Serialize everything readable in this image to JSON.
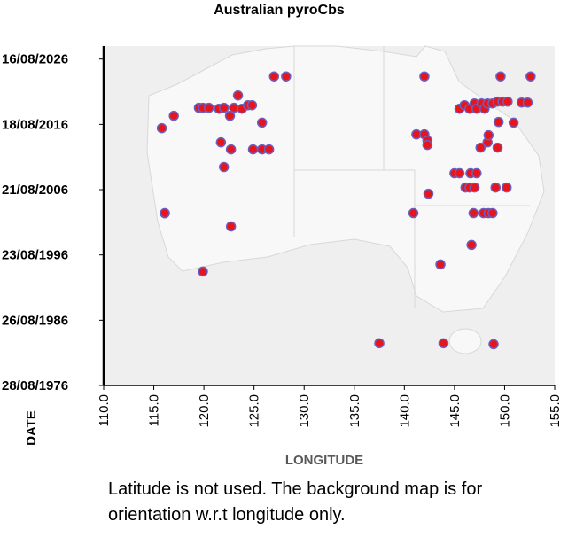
{
  "chart_data": {
    "type": "scatter",
    "title": "Australian pyroCbs",
    "x_label": "LONGITUDE",
    "y_label": "DATE",
    "note": "Latitude is not used. The background map is for orientation w.r.t longitude only.",
    "color": "#e8141c",
    "edge_color": "#6b5fc0",
    "xlim": [
      110,
      155
    ],
    "xticks": [
      {
        "value": 110,
        "label": "110.0"
      },
      {
        "value": 115,
        "label": "115.0"
      },
      {
        "value": 120,
        "label": "120.0"
      },
      {
        "value": 125,
        "label": "125.0"
      },
      {
        "value": 130,
        "label": "130.0"
      },
      {
        "value": 135,
        "label": "135.0"
      },
      {
        "value": 140,
        "label": "140.0"
      },
      {
        "value": 145,
        "label": "145.0"
      },
      {
        "value": 150,
        "label": "150.0"
      },
      {
        "value": 155,
        "label": "155.0"
      }
    ],
    "ylim": [
      "28/08/1976",
      "14/08/2028"
    ],
    "yticks": [
      "28/08/1976",
      "26/08/1986",
      "23/08/1996",
      "21/08/2006",
      "18/08/2016",
      "16/08/2026"
    ],
    "x": [
      115.8,
      116.1,
      117.0,
      119.5,
      119.9,
      120.5,
      121.5,
      122.0,
      122.6,
      123.0,
      123.4,
      123.8,
      124.4,
      124.8,
      121.7,
      122.7,
      122.0,
      116.1,
      122.7,
      119.9,
      125.8,
      124.9,
      125.8,
      126.5,
      127.0,
      128.2,
      142.0,
      141.2,
      142.0,
      142.3,
      142.3,
      142.4,
      140.9,
      143.6,
      137.5,
      143.9,
      148.9,
      145.5,
      146.0,
      146.5,
      147.0,
      147.2,
      147.7,
      148.0,
      148.3,
      148.8,
      149.3,
      149.8,
      150.3,
      149.6,
      152.6,
      151.7,
      152.3,
      149.4,
      150.9,
      148.3,
      147.6,
      149.3,
      148.4,
      145.0,
      145.5,
      146.6,
      147.2,
      146.1,
      146.5,
      147.0,
      149.1,
      150.2,
      146.9,
      147.9,
      148.4,
      148.8,
      146.7
    ],
    "values": [
      "19/01/2016",
      "08/01/2003",
      "13/12/2017",
      "04/03/2019",
      "04/03/2019",
      "04/03/2019",
      "11/01/2019",
      "04/03/2019",
      "13/12/2017",
      "04/03/2019",
      "22/01/2021",
      "11/01/2019",
      "26/07/2019",
      "26/07/2019",
      "17/11/2013",
      "19/10/2012",
      "03/02/2010",
      "15/01/2003",
      "01/01/2001",
      "06/02/1994",
      "24/11/2016",
      "19/10/2012",
      "19/10/2012",
      "19/10/2012",
      "24/12/2023",
      "24/12/2023",
      "24/12/2023",
      "06/02/2015",
      "06/02/2015",
      "24/02/2014",
      "24/06/2013",
      "08/01/2006",
      "15/01/2003",
      "10/03/1995",
      "14/02/1983",
      "14/02/1983",
      "24/12/1982",
      "11/01/2019",
      "26/07/2019",
      "11/01/2019",
      "02/11/2019",
      "11/01/2019",
      "02/11/2019",
      "11/01/2019",
      "02/11/2019",
      "02/11/2019",
      "14/02/2020",
      "14/02/2020",
      "14/02/2020",
      "24/12/2023",
      "24/12/2023",
      "24/12/2019",
      "24/12/2019",
      "01/01/2017",
      "24/11/2016",
      "17/11/2013",
      "26/01/2013",
      "26/01/2013",
      "19/12/2014",
      "21/02/2009",
      "21/02/2009",
      "21/02/2009",
      "21/02/2009",
      "20/12/2006",
      "20/12/2006",
      "20/12/2006",
      "20/12/2006",
      "20/12/2006",
      "15/01/2003",
      "15/01/2003",
      "15/01/2003",
      "15/01/2003",
      "04/03/1998"
    ]
  }
}
